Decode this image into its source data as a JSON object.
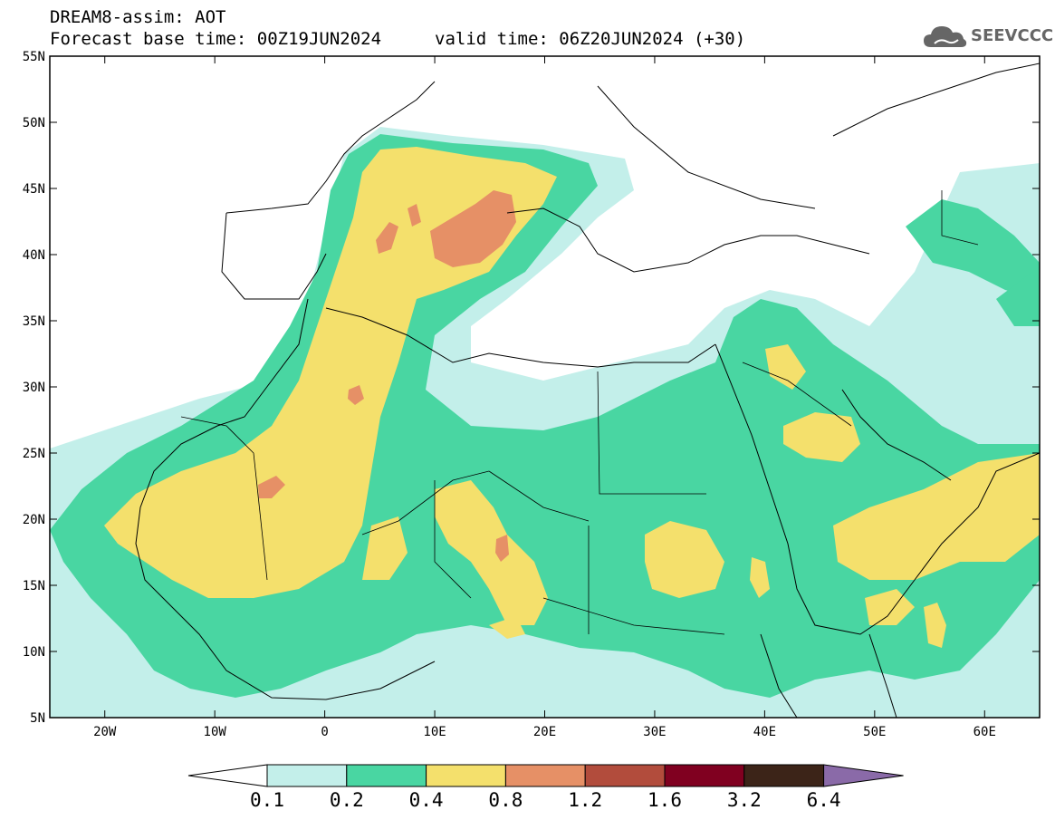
{
  "header": {
    "title_line1": "DREAM8-assim: AOT",
    "title_line2": "Forecast base time: 00Z19JUN2024",
    "valid_time": "valid time: 06Z20JUN2024 (+30)",
    "logo_text": "SEEVCCC"
  },
  "map": {
    "lon_range": [
      -25,
      65
    ],
    "lat_range": [
      5,
      55
    ],
    "lat_labels": [
      "55N",
      "50N",
      "45N",
      "40N",
      "35N",
      "30N",
      "25N",
      "20N",
      "15N",
      "10N",
      "5N"
    ],
    "lon_labels": [
      "20W",
      "10W",
      "0",
      "10E",
      "20E",
      "30E",
      "40E",
      "50E",
      "60E"
    ],
    "region": "North Africa, Mediterranean, Arabian Peninsula",
    "field": "Aerosol Optical Thickness"
  },
  "legend": {
    "levels": [
      "0.1",
      "0.2",
      "0.4",
      "0.8",
      "1.2",
      "1.6",
      "3.2",
      "6.4"
    ],
    "colors": [
      "#ffffff",
      "#c3efea",
      "#49d6a2",
      "#f4e06c",
      "#e69066",
      "#b24c3c",
      "#800020",
      "#3c2418",
      "#8a6aa8"
    ]
  },
  "colors": {
    "lightcyan": "#c3efea",
    "green": "#49d6a2",
    "yellow": "#f4e06c",
    "orange": "#e69066"
  }
}
